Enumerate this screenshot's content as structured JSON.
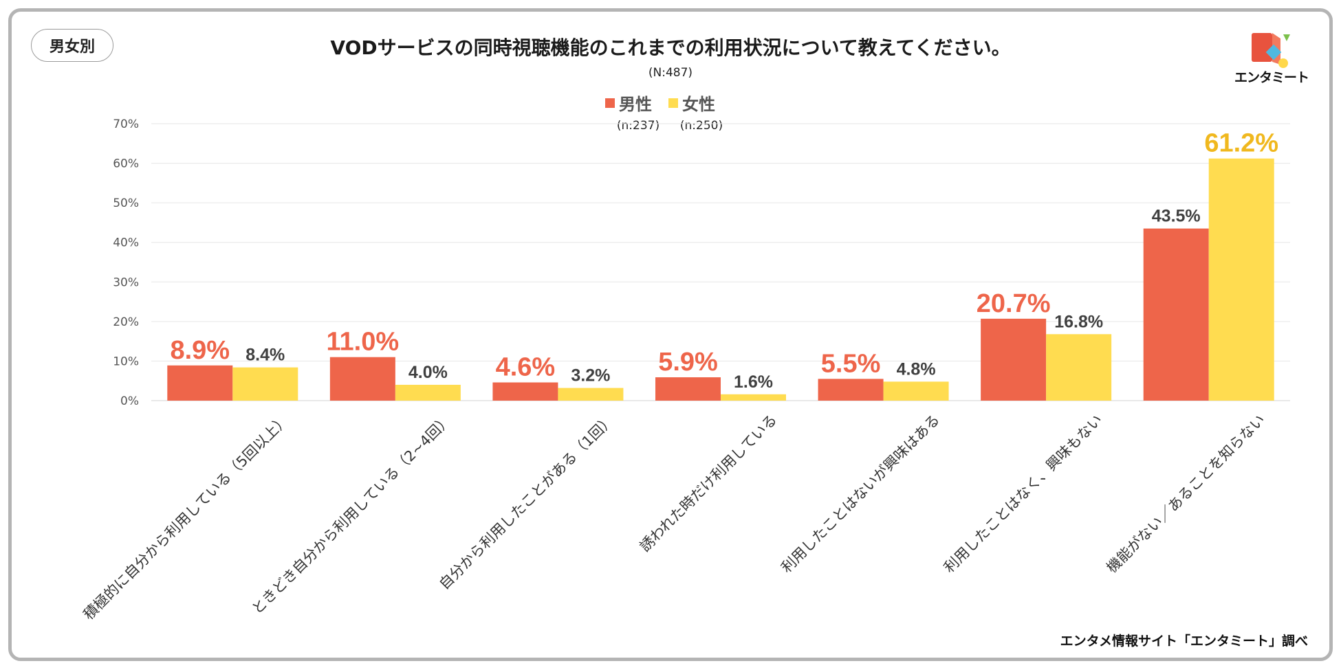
{
  "badge": "男女別",
  "title": "VODサービスの同時視聴機能のこれまでの利用状況について教えてください。",
  "subtitle": "(N:487)",
  "logo_text": "エンタミート",
  "source": "エンタメ情報サイト「エンタミート」調べ",
  "colors": {
    "male": "#EE654A",
    "female": "#FFDC50",
    "male_highlight_label": "#EE654A",
    "female_highlight_label": "#F0B81E",
    "label_default": "#404040"
  },
  "legend": [
    {
      "name": "男性",
      "n": "(n:237)"
    },
    {
      "name": "女性",
      "n": "(n:250)"
    }
  ],
  "chart_data": {
    "type": "bar",
    "categories": [
      "積極的に自分から利用している（5回以上）",
      "ときどき自分から利用している（2~4回）",
      "自分から利用したことがある（1回）",
      "誘われた時だけ利用している",
      "利用したことはないが興味はある",
      "利用したことはなく、興味もない",
      "機能がない／あることを知らない"
    ],
    "series": [
      {
        "name": "男性",
        "values": [
          8.9,
          11.0,
          4.6,
          5.9,
          5.5,
          20.7,
          43.5
        ],
        "labels": [
          "8.9%",
          "11.0%",
          "4.6%",
          "5.9%",
          "5.5%",
          "20.7%",
          "43.5%"
        ],
        "highlight": [
          true,
          true,
          true,
          true,
          true,
          true,
          false
        ]
      },
      {
        "name": "女性",
        "values": [
          8.4,
          4.0,
          3.2,
          1.6,
          4.8,
          16.8,
          61.2
        ],
        "labels": [
          "8.4%",
          "4.0%",
          "3.2%",
          "1.6%",
          "4.8%",
          "16.8%",
          "61.2%"
        ],
        "highlight": [
          false,
          false,
          false,
          false,
          false,
          false,
          true
        ]
      }
    ],
    "yticks": [
      "0%",
      "10%",
      "20%",
      "30%",
      "40%",
      "50%",
      "60%",
      "70%"
    ],
    "ylim": [
      0,
      70
    ],
    "grid": true,
    "legend_position": "top-center"
  }
}
